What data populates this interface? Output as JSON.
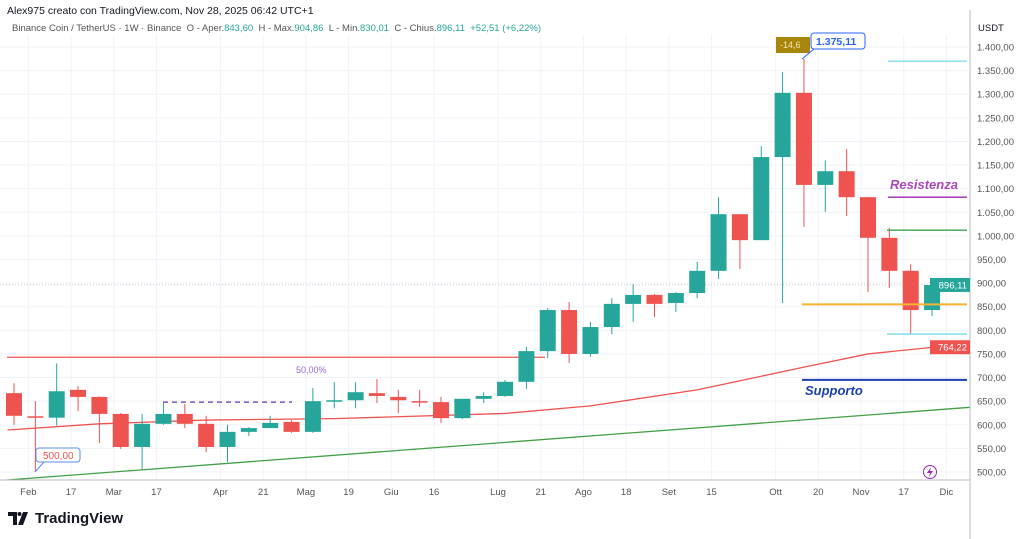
{
  "header": {
    "attribution": "Alex975 creato con TradingView.com, Nov 28, 2025 06:42 UTC+1"
  },
  "legend": {
    "symbol": "Binance Coin / TetherUS · 1W · Binance",
    "o_label": "O - Aper.",
    "o": "843,60",
    "h_label": "H - Max.",
    "h": "904,86",
    "l_label": "L - Min.",
    "l": "830,01",
    "c_label": "C - Chius.",
    "c": "896,11",
    "change": "+52,51 (+6,22%)"
  },
  "colors": {
    "up": "#26a69a",
    "down": "#ef5350",
    "ma": "#ef5350",
    "trend": "#43a047",
    "resistance": "#9c27b0",
    "support": "#1e40af",
    "orange": "#f9b233",
    "cyan": "#80deea"
  },
  "chart_data": {
    "type": "candlestick",
    "currency": "USDT",
    "ylim": [
      480,
      1420
    ],
    "yticks": [
      "500,00",
      "550,00",
      "600,00",
      "650,00",
      "700,00",
      "750,00",
      "800,00",
      "850,00",
      "900,00",
      "950,00",
      "1.000,00",
      "1.050,00",
      "1.100,00",
      "1.150,00",
      "1.200,00",
      "1.250,00",
      "1.300,00",
      "1.350,00",
      "1.400,00"
    ],
    "ytick_values": [
      500,
      550,
      600,
      650,
      700,
      750,
      800,
      850,
      900,
      950,
      1000,
      1050,
      1100,
      1150,
      1200,
      1250,
      1300,
      1350,
      1400
    ],
    "xticks": [
      {
        "label": "Feb",
        "i": 1
      },
      {
        "label": "17",
        "i": 3
      },
      {
        "label": "Mar",
        "i": 5
      },
      {
        "label": "17",
        "i": 7
      },
      {
        "label": "Apr",
        "i": 10
      },
      {
        "label": "21",
        "i": 12
      },
      {
        "label": "Mag",
        "i": 14
      },
      {
        "label": "19",
        "i": 16
      },
      {
        "label": "Giu",
        "i": 18
      },
      {
        "label": "16",
        "i": 20
      },
      {
        "label": "Lug",
        "i": 23
      },
      {
        "label": "21",
        "i": 25
      },
      {
        "label": "Ago",
        "i": 27
      },
      {
        "label": "18",
        "i": 29
      },
      {
        "label": "Set",
        "i": 31
      },
      {
        "label": "15",
        "i": 33
      },
      {
        "label": "Ott",
        "i": 36
      },
      {
        "label": "20",
        "i": 38
      },
      {
        "label": "Nov",
        "i": 40
      },
      {
        "label": "17",
        "i": 42
      },
      {
        "label": "Dic",
        "i": 44
      }
    ],
    "ohlc": [
      [
        667,
        688,
        600,
        619
      ],
      [
        618,
        650,
        500,
        617
      ],
      [
        615,
        730,
        598,
        671
      ],
      [
        674,
        682,
        629,
        659
      ],
      [
        659,
        660,
        561,
        623
      ],
      [
        623,
        625,
        549,
        553
      ],
      [
        553,
        623,
        506,
        602
      ],
      [
        602,
        646,
        600,
        623
      ],
      [
        623,
        644,
        593,
        602
      ],
      [
        602,
        619,
        542,
        553
      ],
      [
        553,
        600,
        521,
        585
      ],
      [
        585,
        595,
        576,
        593
      ],
      [
        593,
        619,
        593,
        604
      ],
      [
        606,
        610,
        583,
        585
      ],
      [
        585,
        678,
        583,
        650
      ],
      [
        650,
        690,
        635,
        652
      ],
      [
        652,
        690,
        635,
        669
      ],
      [
        667,
        697,
        646,
        661
      ],
      [
        659,
        674,
        625,
        652
      ],
      [
        650,
        674,
        638,
        648
      ],
      [
        648,
        659,
        604,
        614
      ],
      [
        614,
        655,
        612,
        655
      ],
      [
        655,
        669,
        646,
        661
      ],
      [
        661,
        695,
        659,
        691
      ],
      [
        691,
        765,
        676,
        756
      ],
      [
        756,
        847,
        741,
        843
      ],
      [
        843,
        860,
        731,
        750
      ],
      [
        750,
        818,
        744,
        807
      ],
      [
        807,
        868,
        792,
        856
      ],
      [
        856,
        898,
        818,
        875
      ],
      [
        875,
        877,
        828,
        856
      ],
      [
        858,
        881,
        839,
        879
      ],
      [
        879,
        945,
        868,
        926
      ],
      [
        926,
        1082,
        909,
        1046
      ],
      [
        1046,
        1046,
        930,
        991
      ],
      [
        991,
        1190,
        991,
        1167
      ],
      [
        1167,
        1347,
        858,
        1303
      ],
      [
        1303,
        1375,
        1019,
        1108
      ],
      [
        1108,
        1160,
        1051,
        1137
      ],
      [
        1137,
        1184,
        1042,
        1082
      ],
      [
        1082,
        1082,
        881,
        996
      ],
      [
        996,
        1017,
        890,
        926
      ],
      [
        926,
        940,
        792,
        843
      ],
      [
        843,
        905,
        830,
        896
      ]
    ],
    "moving_average": [
      [
        -0.3,
        589
      ],
      [
        4,
        602
      ],
      [
        9,
        610
      ],
      [
        15,
        613
      ],
      [
        23,
        624
      ],
      [
        27,
        640
      ],
      [
        32,
        674
      ],
      [
        37,
        722
      ],
      [
        40,
        750
      ],
      [
        43,
        764
      ]
    ],
    "current_price": "896,11",
    "ma_value": "764,22"
  },
  "drawings": {
    "resistance_label": "Resistenza",
    "support_label": "Supporto",
    "resistance": 1082,
    "support": 695,
    "orange_level": 855,
    "green_level": 1012,
    "cyan_high": 1370,
    "cyan_low": 792,
    "red_horizontal": 743,
    "trendline": [
      483,
      637
    ],
    "fib_level": 648,
    "fib_label": "50,00%",
    "high_callout": "1.375,11",
    "low_callout": "500,00",
    "change_badge": "-14,6"
  },
  "logo": "TradingView"
}
